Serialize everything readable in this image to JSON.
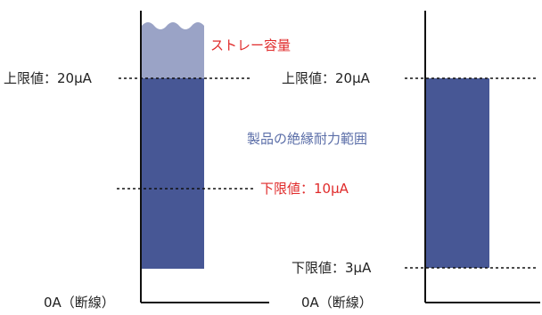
{
  "labels": {
    "left": {
      "stray_capacity": "ストレー容量",
      "upper_limit": "上限値：20μA",
      "insulation_range": "製品の絶縁耐力範囲",
      "lower_limit": "下限値：10μA",
      "zero": "0A（断線）"
    },
    "right": {
      "upper_limit": "上限値：20μA",
      "lower_limit": "下限値：3μA",
      "zero": "0A（断線）"
    }
  },
  "colors": {
    "axis": "#111111",
    "bar": "#475795",
    "stray": "#9aa3c6",
    "red_text": "#e02b2b",
    "blue_text": "#5b6ea8"
  }
}
